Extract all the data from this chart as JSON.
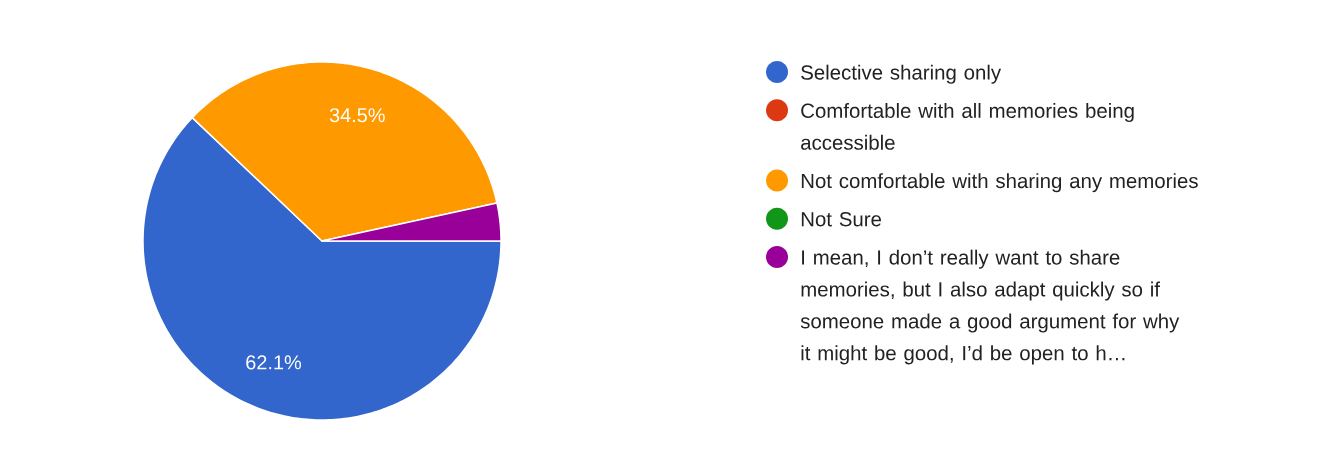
{
  "chart_data": {
    "type": "pie",
    "categories": [
      "Selective sharing only",
      "Comfortable with all memories being accessible",
      "Not comfortable with sharing any memories",
      "Not Sure",
      "I mean, I don’t really want to share memories, but I also adapt quickly so if someone made a good argument for why it might be good, I’d be open to h…"
    ],
    "values": [
      62.1,
      0,
      34.5,
      0,
      3.4
    ],
    "colors": [
      "#3366cc",
      "#dc3912",
      "#ff9900",
      "#109618",
      "#990099"
    ],
    "value_labels": [
      "62.1%",
      null,
      "34.5%",
      null,
      null
    ],
    "legend": "right"
  }
}
